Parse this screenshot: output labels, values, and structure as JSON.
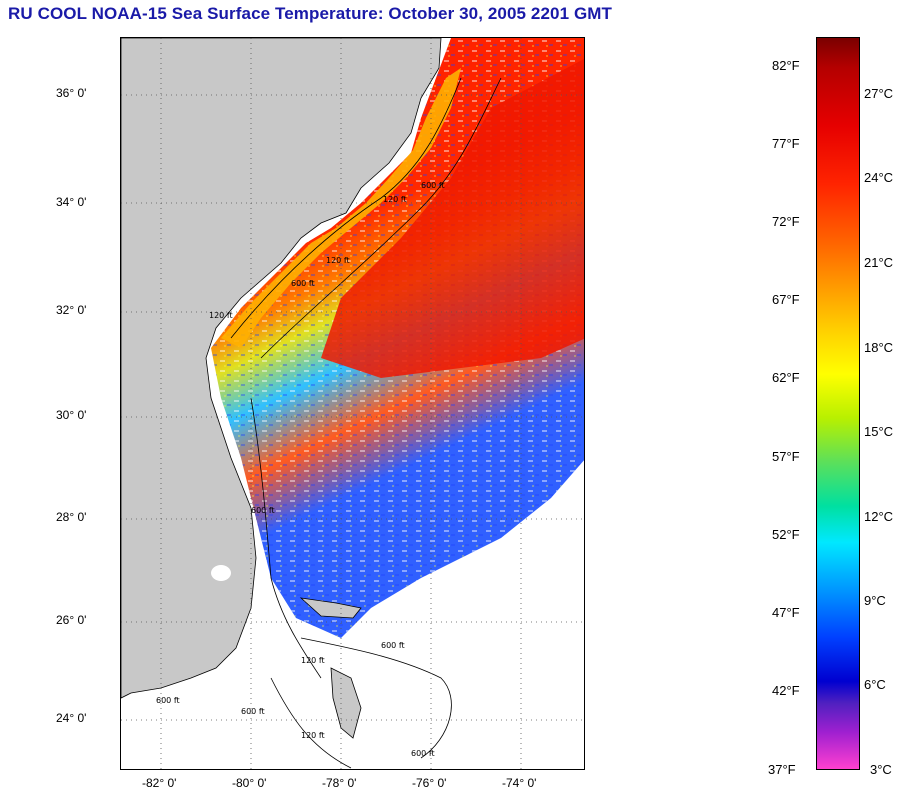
{
  "title": "RU COOL  NOAA-15  Sea Surface Temperature:  October 30, 2005 2201 GMT",
  "map": {
    "lat_labels": [
      "36° 0'",
      "34° 0'",
      "32° 0'",
      "30° 0'",
      "28° 0'",
      "26° 0'",
      "24° 0'"
    ],
    "lon_labels": [
      "-82° 0'",
      "-80° 0'",
      "-78° 0'",
      "-76° 0'",
      "-74° 0'"
    ],
    "contour_labels": [
      "120 ft",
      "600 ft",
      "120 ft",
      "600 ft",
      "120 ft",
      "600 ft",
      "120 ft",
      "600 ft",
      "600 ft",
      "120 ft",
      "600 ft",
      "600 ft"
    ],
    "colors": {
      "land": "#c8c8c8",
      "no_data": "#ffffff",
      "warm": "#ff2a00",
      "shelf": "#ffb000",
      "cool": "#2a60ff"
    }
  },
  "colorbar": {
    "fahrenheit": [
      "82°F",
      "77°F",
      "72°F",
      "67°F",
      "62°F",
      "57°F",
      "52°F",
      "47°F",
      "42°F",
      "37°F"
    ],
    "celsius": [
      "27°C",
      "24°C",
      "21°C",
      "18°C",
      "15°C",
      "12°C",
      "9°C",
      "6°C",
      "3°C"
    ]
  }
}
